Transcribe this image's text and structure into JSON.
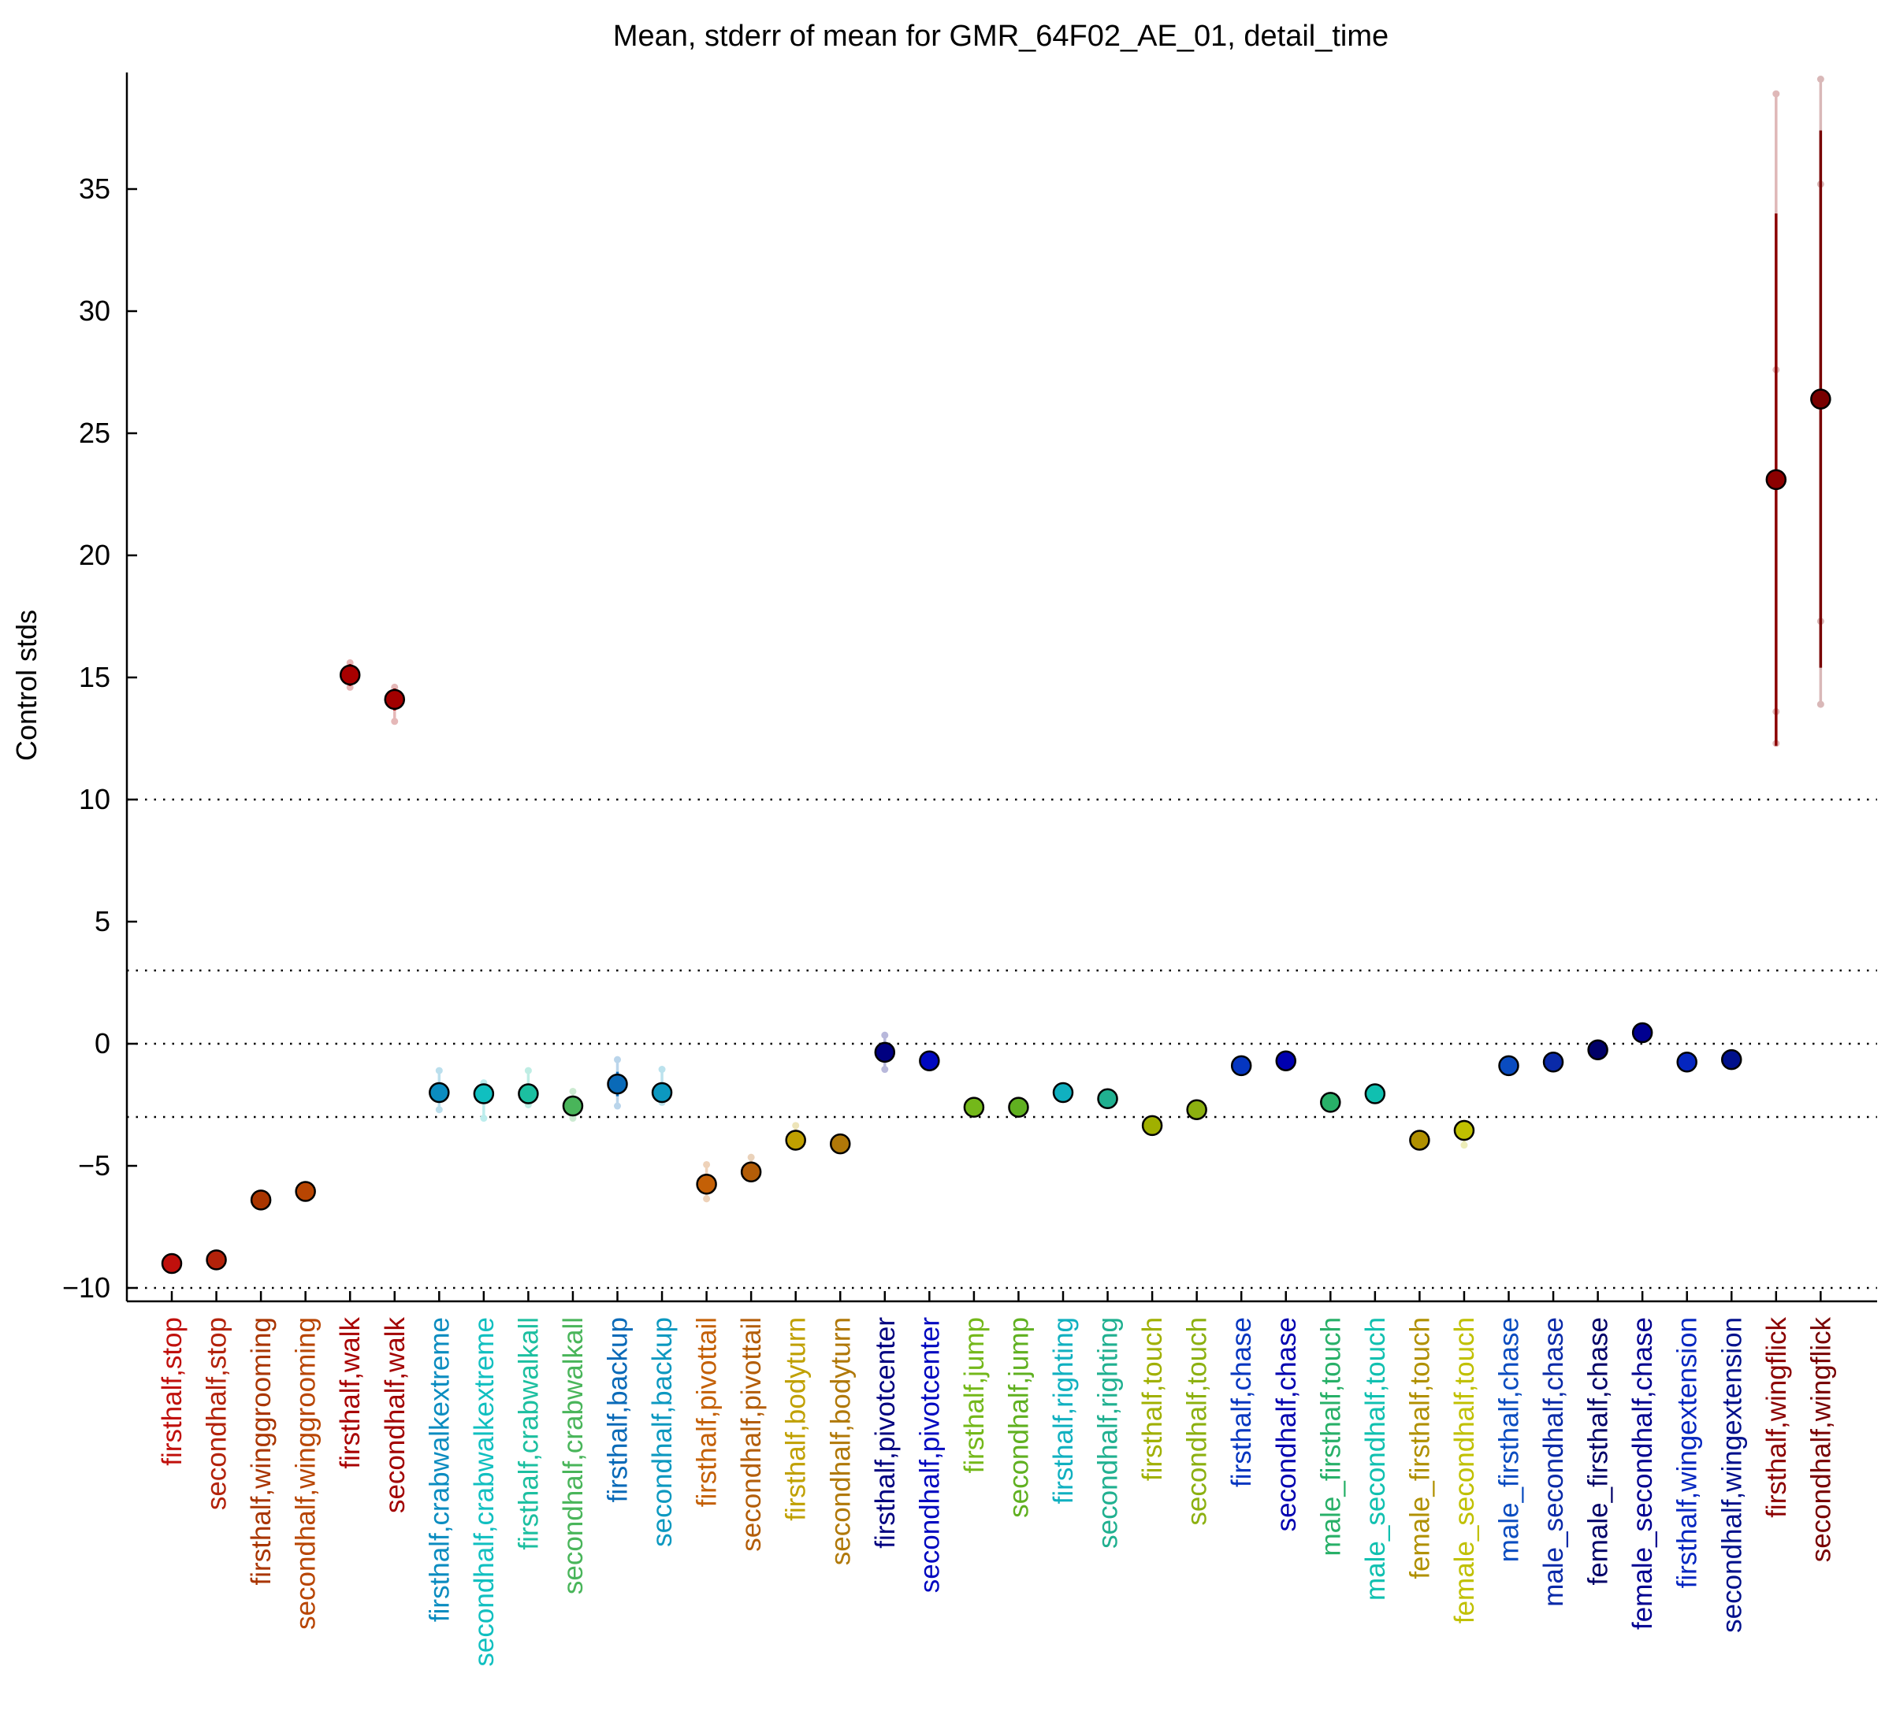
{
  "chart_data": {
    "type": "scatter",
    "title": "Mean, stderr of mean for GMR_64F02_AE_01, detail_time",
    "ylabel": "Control stds",
    "xlabel": "",
    "ylim": [
      -10.5,
      40
    ],
    "yticks": [
      -10,
      -5,
      0,
      5,
      10,
      15,
      20,
      25,
      30,
      35
    ],
    "reference_lines": [
      -10,
      -3,
      0,
      3,
      10
    ],
    "grid": false,
    "categories": [
      "firsthalf,stop",
      "secondhalf,stop",
      "firsthalf,winggrooming",
      "secondhalf,winggrooming",
      "firsthalf,walk",
      "secondhalf,walk",
      "firsthalf,crabwalkextreme",
      "secondhalf,crabwalkextreme",
      "firsthalf,crabwalkall",
      "secondhalf,crabwalkall",
      "firsthalf,backup",
      "secondhalf,backup",
      "firsthalf,pivottail",
      "secondhalf,pivottail",
      "firsthalf,bodyturn",
      "secondhalf,bodyturn",
      "firsthalf,pivotcenter",
      "secondhalf,pivotcenter",
      "firsthalf,jump",
      "secondhalf,jump",
      "firsthalf,righting",
      "secondhalf,righting",
      "firsthalf,touch",
      "secondhalf,touch",
      "firsthalf,chase",
      "secondhalf,chase",
      "male_firsthalf,touch",
      "male_secondhalf,touch",
      "female_firsthalf,touch",
      "female_secondhalf,touch",
      "male_firsthalf,chase",
      "male_secondhalf,chase",
      "female_firsthalf,chase",
      "female_secondhalf,chase",
      "firsthalf,wingextension",
      "secondhalf,wingextension",
      "firsthalf,wingflick",
      "secondhalf,wingflick"
    ],
    "means": [
      -9.0,
      -8.85,
      -6.4,
      -6.05,
      15.1,
      14.1,
      -2.0,
      -2.05,
      -2.05,
      -2.55,
      -1.65,
      -2.0,
      -5.75,
      -5.25,
      -3.95,
      -4.1,
      -0.35,
      -0.7,
      -2.6,
      -2.6,
      -2.0,
      -2.25,
      -3.35,
      -2.7,
      -0.9,
      -0.7,
      -2.4,
      -2.05,
      -3.95,
      -3.55,
      -0.9,
      -0.75,
      -0.25,
      0.45,
      -0.75,
      -0.65,
      23.1,
      26.4
    ],
    "stderr": [
      0.15,
      0.1,
      0.1,
      0.1,
      0.45,
      0.45,
      0.35,
      0.35,
      0.25,
      0.25,
      0.5,
      0.3,
      0.25,
      0.2,
      0.1,
      0.1,
      0.4,
      0.15,
      0.1,
      0.1,
      0.1,
      0.1,
      0.1,
      0.1,
      0.1,
      0.1,
      0.1,
      0.1,
      0.1,
      0.3,
      0.1,
      0.1,
      0.1,
      0.1,
      0.1,
      0.1,
      10.9,
      11.0
    ],
    "range_low": [
      -9.2,
      -9.0,
      -6.5,
      -6.15,
      14.6,
      13.2,
      -2.7,
      -3.05,
      -2.5,
      -3.05,
      -2.55,
      -2.4,
      -6.35,
      -5.5,
      -4.1,
      -4.25,
      -1.05,
      -0.9,
      -2.75,
      -2.75,
      -2.15,
      -2.4,
      -3.5,
      -2.85,
      -1.05,
      -0.85,
      -2.55,
      -2.2,
      -4.1,
      -4.15,
      -1.05,
      -0.9,
      -0.4,
      0.3,
      -0.9,
      -0.8,
      12.3,
      13.9
    ],
    "range_high": [
      -8.8,
      -8.7,
      -6.3,
      -5.95,
      15.6,
      14.6,
      -1.1,
      -1.6,
      -1.1,
      -1.95,
      -0.65,
      -1.05,
      -4.95,
      -4.65,
      -3.35,
      -3.95,
      0.35,
      -0.5,
      -2.45,
      -2.45,
      -1.85,
      -2.1,
      -3.2,
      -2.55,
      -0.75,
      -0.55,
      -2.25,
      -1.9,
      -3.8,
      -3.25,
      -0.75,
      -0.6,
      -0.1,
      0.6,
      -0.6,
      -0.5,
      38.9,
      39.5
    ],
    "inner_points": [
      [],
      [],
      [],
      [],
      [],
      [],
      [],
      [],
      [],
      [],
      [],
      [],
      [],
      [],
      [],
      [],
      [],
      [],
      [],
      [],
      [],
      [],
      [],
      [],
      [],
      [],
      [],
      [],
      [],
      [],
      [],
      [],
      [],
      [],
      [],
      [],
      [
        13.6,
        27.6
      ],
      [
        17.3,
        35.2
      ]
    ],
    "colors": [
      "#c0100c",
      "#b3220a",
      "#a93500",
      "#b84502",
      "#a80000",
      "#a20000",
      "#0b8cc0",
      "#10bfc0",
      "#1cbfa0",
      "#49b55a",
      "#0a6ab8",
      "#0c98c0",
      "#c46006",
      "#b35d08",
      "#c0a000",
      "#b07808",
      "#000080",
      "#0008c0",
      "#74b81a",
      "#60b020",
      "#10b0c0",
      "#20b090",
      "#a0b000",
      "#8cb010",
      "#0536c0",
      "#0000b0",
      "#28b068",
      "#10c0b0",
      "#b09000",
      "#c0c000",
      "#0a4cc0",
      "#0a2aa8",
      "#000068",
      "#000090",
      "#0526c0",
      "#00108c",
      "#8c0000",
      "#780000"
    ]
  }
}
